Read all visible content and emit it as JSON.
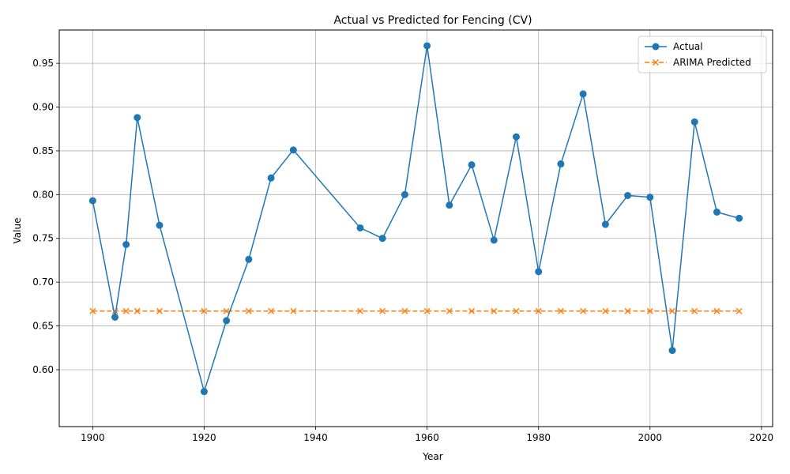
{
  "chart_data": {
    "type": "line",
    "title": "Actual vs Predicted for Fencing (CV)",
    "xlabel": "Year",
    "ylabel": "Value",
    "xlim": [
      1894,
      2022
    ],
    "ylim": [
      0.535,
      0.988
    ],
    "x_ticks": [
      1900,
      1920,
      1940,
      1960,
      1980,
      2000,
      2020
    ],
    "y_ticks": [
      0.6,
      0.65,
      0.7,
      0.75,
      0.8,
      0.85,
      0.9,
      0.95
    ],
    "y_tick_labels": [
      "0.60",
      "0.65",
      "0.70",
      "0.75",
      "0.80",
      "0.85",
      "0.90",
      "0.95"
    ],
    "grid": true,
    "legend_position": "top-right",
    "x": [
      1900,
      1904,
      1906,
      1908,
      1912,
      1920,
      1924,
      1928,
      1932,
      1936,
      1948,
      1952,
      1956,
      1960,
      1964,
      1968,
      1972,
      1976,
      1980,
      1984,
      1988,
      1992,
      1996,
      2000,
      2004,
      2008,
      2012,
      2016
    ],
    "series": [
      {
        "name": "Actual",
        "color": "#1f77b4",
        "marker": "circle",
        "line_style": "solid",
        "values": [
          0.793,
          0.66,
          0.743,
          0.888,
          0.765,
          0.575,
          0.656,
          0.726,
          0.819,
          0.851,
          0.762,
          0.75,
          0.8,
          0.97,
          0.788,
          0.834,
          0.748,
          0.866,
          0.712,
          0.835,
          0.915,
          0.766,
          0.799,
          0.797,
          0.622,
          0.883,
          0.78,
          0.773
        ]
      },
      {
        "name": "ARIMA Predicted",
        "color": "#ff7f0e",
        "marker": "x",
        "line_style": "dashed",
        "values": [
          0.667,
          0.667,
          0.667,
          0.667,
          0.667,
          0.667,
          0.667,
          0.667,
          0.667,
          0.667,
          0.667,
          0.667,
          0.667,
          0.667,
          0.667,
          0.667,
          0.667,
          0.667,
          0.667,
          0.667,
          0.667,
          0.667,
          0.667,
          0.667,
          0.667,
          0.667,
          0.667,
          0.667
        ]
      }
    ]
  }
}
